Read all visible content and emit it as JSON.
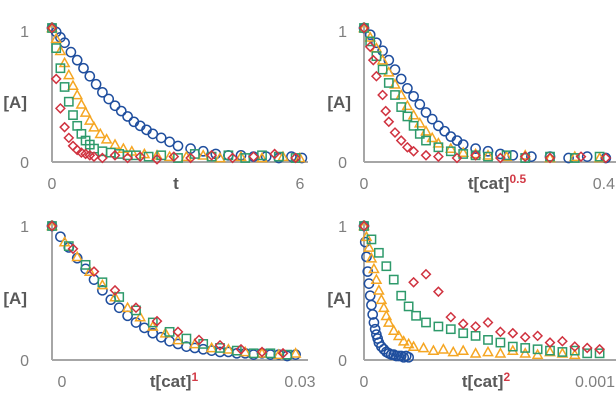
{
  "colors": {
    "blue": "#1f4e9e",
    "orange": "#f5a623",
    "green": "#2e9a6b",
    "red": "#d0323f",
    "axis": "#a6a6a6",
    "exponent": "#d23a46"
  },
  "marker_shapes": {
    "blue": "circle",
    "orange": "triangle",
    "green": "square",
    "red": "diamond"
  },
  "chart_data": [
    {
      "type": "scatter",
      "ylabel": "[A]",
      "xlabel": "t",
      "xlabel_exponent": "",
      "xlim": [
        0,
        6
      ],
      "ylim": [
        0,
        1
      ],
      "x_ticks": [
        "0",
        "6"
      ],
      "y_ticks": [
        "0",
        "1"
      ],
      "series": [
        {
          "color": "blue",
          "x": [
            0,
            0.1,
            0.2,
            0.3,
            0.45,
            0.6,
            0.75,
            0.9,
            1.05,
            1.2,
            1.35,
            1.5,
            1.65,
            1.8,
            1.95,
            2.1,
            2.25,
            2.4,
            2.6,
            2.8,
            3.0,
            3.3,
            3.6,
            3.9,
            4.2,
            4.5,
            4.8,
            5.1,
            5.4,
            5.7,
            5.95
          ],
          "y": [
            1.0,
            0.97,
            0.93,
            0.89,
            0.82,
            0.76,
            0.7,
            0.64,
            0.58,
            0.52,
            0.47,
            0.42,
            0.38,
            0.34,
            0.3,
            0.27,
            0.24,
            0.21,
            0.18,
            0.15,
            0.12,
            0.1,
            0.08,
            0.06,
            0.05,
            0.05,
            0.04,
            0.04,
            0.03,
            0.04,
            0.03
          ]
        },
        {
          "color": "orange",
          "x": [
            0,
            0.1,
            0.2,
            0.3,
            0.4,
            0.5,
            0.6,
            0.7,
            0.8,
            0.9,
            1.0,
            1.15,
            1.3,
            1.5,
            1.7,
            1.9,
            2.2,
            2.5,
            2.8,
            3.2,
            3.6,
            4.0,
            4.5,
            5.0,
            5.5,
            5.9
          ],
          "y": [
            1.0,
            0.92,
            0.83,
            0.74,
            0.65,
            0.57,
            0.5,
            0.43,
            0.37,
            0.31,
            0.26,
            0.21,
            0.17,
            0.13,
            0.1,
            0.08,
            0.06,
            0.05,
            0.04,
            0.04,
            0.05,
            0.03,
            0.04,
            0.03,
            0.04,
            0.03
          ]
        },
        {
          "color": "green",
          "x": [
            0,
            0.1,
            0.2,
            0.3,
            0.4,
            0.5,
            0.6,
            0.7,
            0.8,
            0.9,
            1.0,
            1.2,
            1.4,
            1.6,
            1.8,
            2.0,
            2.3,
            2.6,
            3.0,
            3.4,
            3.8,
            4.2,
            4.6,
            5.0,
            5.4,
            5.8
          ],
          "y": [
            1.0,
            0.85,
            0.7,
            0.56,
            0.45,
            0.35,
            0.27,
            0.21,
            0.16,
            0.13,
            0.1,
            0.08,
            0.07,
            0.06,
            0.05,
            0.05,
            0.04,
            0.05,
            0.03,
            0.06,
            0.04,
            0.05,
            0.03,
            0.05,
            0.04,
            0.03
          ]
        },
        {
          "color": "red",
          "x": [
            0,
            0.1,
            0.2,
            0.3,
            0.4,
            0.5,
            0.6,
            0.7,
            0.8,
            0.9,
            1.0,
            1.2,
            1.5,
            1.8,
            2.1,
            2.5,
            2.9,
            3.3,
            3.8,
            4.3,
            4.8,
            5.3,
            5.8
          ],
          "y": [
            1.0,
            0.62,
            0.4,
            0.26,
            0.18,
            0.12,
            0.09,
            0.07,
            0.06,
            0.05,
            0.04,
            0.03,
            0.05,
            0.03,
            0.04,
            0.02,
            0.04,
            0.03,
            0.05,
            0.03,
            0.04,
            0.06,
            0.03
          ]
        }
      ]
    },
    {
      "type": "scatter",
      "ylabel": "[A]",
      "xlabel": "t[cat]",
      "xlabel_exponent": "0.5",
      "xlim": [
        0,
        0.4
      ],
      "ylim": [
        0,
        1
      ],
      "x_ticks": [
        "0",
        "0.4"
      ],
      "y_ticks": [
        "0",
        "1"
      ],
      "series": [
        {
          "color": "blue",
          "x": [
            0,
            0.01,
            0.02,
            0.03,
            0.04,
            0.05,
            0.06,
            0.07,
            0.08,
            0.09,
            0.1,
            0.11,
            0.12,
            0.13,
            0.14,
            0.15,
            0.16,
            0.18,
            0.2,
            0.22,
            0.24,
            0.27,
            0.3,
            0.33,
            0.36,
            0.39
          ],
          "y": [
            1.0,
            0.95,
            0.89,
            0.83,
            0.76,
            0.69,
            0.62,
            0.55,
            0.49,
            0.43,
            0.37,
            0.32,
            0.27,
            0.23,
            0.19,
            0.16,
            0.13,
            0.1,
            0.08,
            0.06,
            0.05,
            0.04,
            0.04,
            0.03,
            0.04,
            0.03
          ]
        },
        {
          "color": "orange",
          "x": [
            0,
            0.01,
            0.02,
            0.03,
            0.04,
            0.05,
            0.06,
            0.07,
            0.08,
            0.09,
            0.1,
            0.11,
            0.12,
            0.14,
            0.16,
            0.18,
            0.2,
            0.23,
            0.26,
            0.3,
            0.34,
            0.38
          ],
          "y": [
            1.0,
            0.93,
            0.85,
            0.76,
            0.67,
            0.58,
            0.5,
            0.42,
            0.35,
            0.29,
            0.23,
            0.18,
            0.14,
            0.1,
            0.07,
            0.06,
            0.05,
            0.04,
            0.05,
            0.03,
            0.04,
            0.03
          ]
        },
        {
          "color": "green",
          "x": [
            0,
            0.01,
            0.02,
            0.03,
            0.04,
            0.05,
            0.06,
            0.07,
            0.08,
            0.09,
            0.1,
            0.12,
            0.14,
            0.16,
            0.18,
            0.2,
            0.23,
            0.26,
            0.3,
            0.34,
            0.38
          ],
          "y": [
            1.0,
            0.9,
            0.79,
            0.69,
            0.59,
            0.5,
            0.41,
            0.34,
            0.27,
            0.21,
            0.16,
            0.11,
            0.08,
            0.06,
            0.05,
            0.04,
            0.05,
            0.03,
            0.04,
            0.03,
            0.04
          ]
        },
        {
          "color": "red",
          "x": [
            0,
            0.01,
            0.015,
            0.02,
            0.03,
            0.035,
            0.04,
            0.05,
            0.06,
            0.07,
            0.08,
            0.1,
            0.12,
            0.15,
            0.18,
            0.22,
            0.26,
            0.3,
            0.35,
            0.39
          ],
          "y": [
            1.0,
            0.86,
            0.76,
            0.64,
            0.5,
            0.38,
            0.3,
            0.22,
            0.16,
            0.11,
            0.08,
            0.05,
            0.04,
            0.03,
            0.05,
            0.03,
            0.04,
            0.03,
            0.04,
            0.03
          ]
        }
      ]
    },
    {
      "type": "scatter",
      "ylabel": "[A]",
      "xlabel": "t[cat]",
      "xlabel_exponent": "1",
      "xlim": [
        0,
        0.03
      ],
      "ylim": [
        0,
        1
      ],
      "x_ticks": [
        "0",
        "0.03"
      ],
      "y_ticks": [
        "0",
        "1"
      ],
      "series": [
        {
          "color": "blue",
          "x": [
            0,
            0.001,
            0.002,
            0.003,
            0.004,
            0.005,
            0.006,
            0.007,
            0.008,
            0.009,
            0.01,
            0.011,
            0.012,
            0.013,
            0.014,
            0.015,
            0.016,
            0.017,
            0.018,
            0.019,
            0.02,
            0.021,
            0.022,
            0.023,
            0.024,
            0.025,
            0.026,
            0.027,
            0.028,
            0.029
          ],
          "y": [
            1.0,
            0.92,
            0.84,
            0.76,
            0.68,
            0.6,
            0.52,
            0.45,
            0.39,
            0.33,
            0.28,
            0.24,
            0.2,
            0.17,
            0.14,
            0.12,
            0.1,
            0.09,
            0.08,
            0.07,
            0.06,
            0.06,
            0.05,
            0.05,
            0.04,
            0.05,
            0.04,
            0.04,
            0.03,
            0.04
          ]
        },
        {
          "color": "orange",
          "x": [
            0,
            0.0015,
            0.003,
            0.0045,
            0.006,
            0.0075,
            0.009,
            0.0105,
            0.012,
            0.0135,
            0.015,
            0.017,
            0.019,
            0.021,
            0.023,
            0.025,
            0.027,
            0.029
          ],
          "y": [
            1.0,
            0.88,
            0.77,
            0.66,
            0.56,
            0.47,
            0.39,
            0.32,
            0.25,
            0.2,
            0.15,
            0.12,
            0.09,
            0.08,
            0.06,
            0.05,
            0.04,
            0.05
          ]
        },
        {
          "color": "green",
          "x": [
            0,
            0.002,
            0.004,
            0.006,
            0.008,
            0.01,
            0.012,
            0.014,
            0.016,
            0.018,
            0.02,
            0.022,
            0.024,
            0.026,
            0.028
          ],
          "y": [
            1.0,
            0.85,
            0.71,
            0.58,
            0.47,
            0.37,
            0.28,
            0.21,
            0.16,
            0.12,
            0.09,
            0.07,
            0.05,
            0.05,
            0.04
          ]
        },
        {
          "color": "red",
          "x": [
            0,
            0.0025,
            0.005,
            0.0075,
            0.01,
            0.0125,
            0.015,
            0.0175,
            0.02,
            0.0225,
            0.025,
            0.0275
          ],
          "y": [
            1.0,
            0.83,
            0.66,
            0.52,
            0.39,
            0.29,
            0.21,
            0.15,
            0.11,
            0.08,
            0.06,
            0.05
          ]
        }
      ]
    },
    {
      "type": "scatter",
      "ylabel": "[A]",
      "xlabel": "t[cat]",
      "xlabel_exponent": "2",
      "xlim": [
        0,
        0.001
      ],
      "ylim": [
        0,
        1
      ],
      "x_ticks": [
        "0",
        "0.001"
      ],
      "y_ticks": [
        "0",
        "1"
      ],
      "series": [
        {
          "color": "blue",
          "x": [
            0,
            5e-06,
            1e-05,
            1.5e-05,
            2e-05,
            2.5e-05,
            3e-05,
            3.5e-05,
            4e-05,
            4.5e-05,
            5e-05,
            5.5e-05,
            6e-05,
            7e-05,
            8e-05,
            9e-05,
            0.0001,
            0.00011,
            0.00012,
            0.00013,
            0.00014,
            0.00015,
            0.00016,
            0.00017,
            0.00018
          ],
          "y": [
            1.0,
            0.88,
            0.77,
            0.66,
            0.57,
            0.48,
            0.41,
            0.34,
            0.28,
            0.23,
            0.19,
            0.16,
            0.13,
            0.1,
            0.08,
            0.06,
            0.05,
            0.04,
            0.04,
            0.03,
            0.03,
            0.03,
            0.02,
            0.03,
            0.02
          ]
        },
        {
          "color": "orange",
          "x": [
            0,
            1e-05,
            2e-05,
            3e-05,
            4e-05,
            5e-05,
            6e-05,
            7e-05,
            8e-05,
            9e-05,
            0.0001,
            0.00012,
            0.00014,
            0.00016,
            0.00018,
            0.0002,
            0.00024,
            0.00028,
            0.00032,
            0.00036,
            0.0004,
            0.00045,
            0.0005,
            0.00055,
            0.0006,
            0.00065,
            0.0007,
            0.00075,
            0.0008,
            0.00085
          ],
          "y": [
            1.0,
            0.92,
            0.84,
            0.76,
            0.68,
            0.6,
            0.52,
            0.45,
            0.39,
            0.33,
            0.28,
            0.22,
            0.18,
            0.14,
            0.12,
            0.1,
            0.09,
            0.07,
            0.08,
            0.06,
            0.07,
            0.05,
            0.06,
            0.05,
            0.07,
            0.05,
            0.04,
            0.06,
            0.05,
            0.04
          ]
        },
        {
          "color": "green",
          "x": [
            0,
            3e-05,
            6e-05,
            9e-05,
            0.00012,
            0.00015,
            0.00018,
            0.00021,
            0.00025,
            0.0003,
            0.00035,
            0.0004,
            0.00045,
            0.0005,
            0.00055,
            0.0006,
            0.00065,
            0.0007,
            0.00075,
            0.0008,
            0.00085,
            0.0009,
            0.00095
          ],
          "y": [
            1.0,
            0.9,
            0.8,
            0.7,
            0.6,
            0.48,
            0.4,
            0.33,
            0.28,
            0.25,
            0.23,
            0.2,
            0.18,
            0.15,
            0.13,
            0.1,
            0.09,
            0.08,
            0.07,
            0.06,
            0.07,
            0.05,
            0.05
          ]
        },
        {
          "color": "red",
          "x": [
            0,
            0.0002,
            0.00025,
            0.0003,
            0.00035,
            0.0004,
            0.00045,
            0.0005,
            0.00055,
            0.0006,
            0.00065,
            0.0007,
            0.00075,
            0.0008,
            0.00085,
            0.0009,
            0.00095
          ],
          "y": [
            1.0,
            0.58,
            0.64,
            0.51,
            0.32,
            0.27,
            0.25,
            0.28,
            0.21,
            0.2,
            0.17,
            0.18,
            0.13,
            0.14,
            0.1,
            0.09,
            0.08
          ]
        }
      ]
    }
  ]
}
